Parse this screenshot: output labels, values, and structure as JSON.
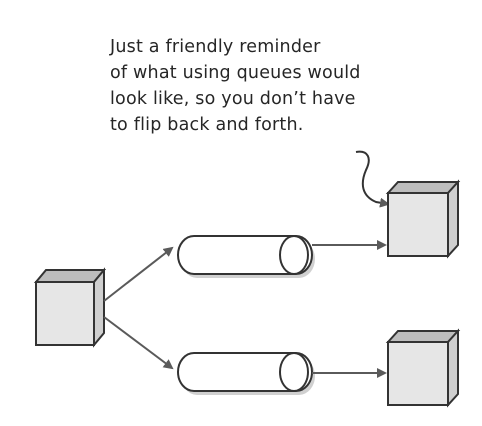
{
  "annotation": {
    "lines": [
      "Just a friendly reminder",
      "of what using queues would",
      "look like, so you don’t have",
      "to flip back and forth."
    ]
  },
  "diagram": {
    "producer": {
      "name": "producer-box"
    },
    "queues": [
      {
        "name": "queue-top",
        "target": "consumer-top"
      },
      {
        "name": "queue-bottom",
        "target": "consumer-bottom"
      }
    ],
    "consumers": [
      {
        "name": "consumer-top"
      },
      {
        "name": "consumer-bottom"
      }
    ],
    "colors": {
      "stroke": "#333333",
      "box_front": "#e6e6e6",
      "box_side": "#cfcfcf",
      "box_top": "#bdbdbd",
      "arrow": "#5a5a5a",
      "shadow": "#d0d0d0"
    }
  }
}
